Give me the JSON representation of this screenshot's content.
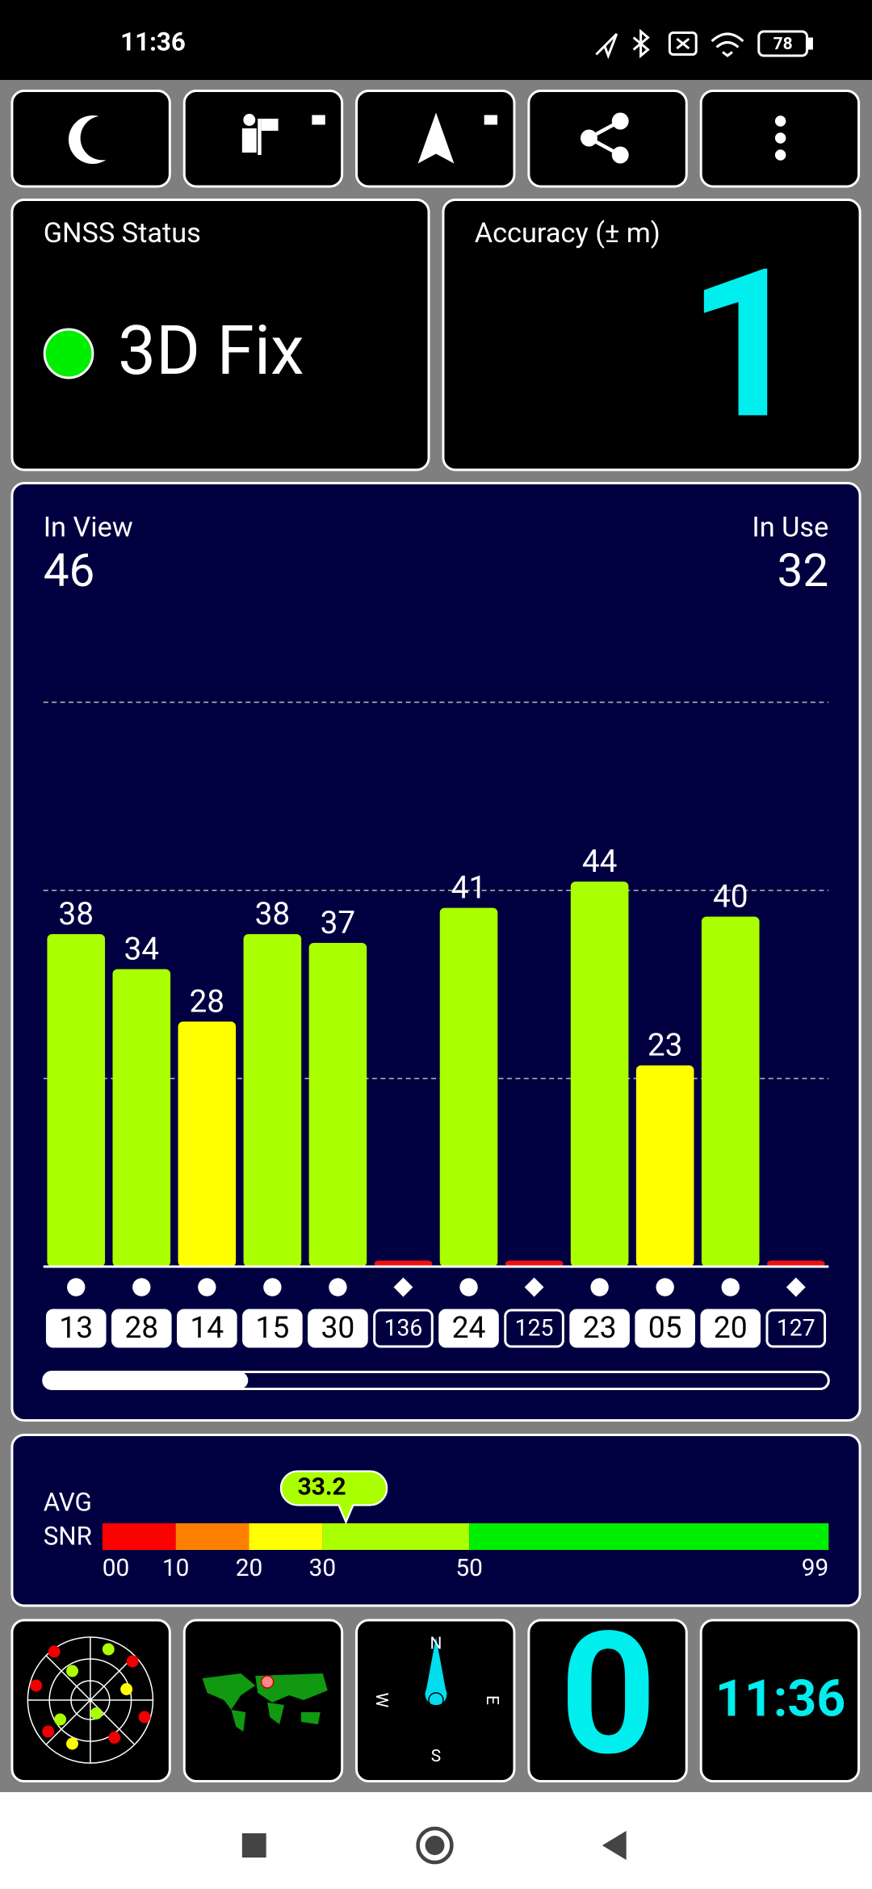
{
  "status_bar": {
    "time": "11:36",
    "battery": "78"
  },
  "gnss": {
    "title": "GNSS Status",
    "fix": "3D Fix"
  },
  "accuracy": {
    "title": "Accuracy (± m)",
    "value": "1"
  },
  "counts": {
    "in_view_label": "In View",
    "in_view": "46",
    "in_use_label": "In Use",
    "in_use": "32"
  },
  "chart_data": {
    "type": "bar",
    "categories": [
      "13",
      "28",
      "14",
      "15",
      "30",
      "136",
      "24",
      "125",
      "23",
      "05",
      "20",
      "127"
    ],
    "values": [
      38,
      34,
      28,
      38,
      37,
      0,
      41,
      0,
      44,
      23,
      40,
      0
    ],
    "colors": [
      "#aaff00",
      "#aaff00",
      "#ffff00",
      "#aaff00",
      "#aaff00",
      "#ee1111",
      "#aaff00",
      "#ee1111",
      "#aaff00",
      "#ffff00",
      "#aaff00",
      "#ee1111"
    ],
    "marker_shapes": [
      "circle",
      "circle",
      "circle",
      "circle",
      "circle",
      "diamond",
      "circle",
      "diamond",
      "circle",
      "circle",
      "circle",
      "diamond"
    ],
    "ylim": [
      0,
      64.5
    ],
    "yticks": [
      21.5,
      43,
      64.5
    ],
    "grid": true
  },
  "snr": {
    "label_1": "AVG",
    "label_2": "SNR",
    "avg": 33.2,
    "avg_label": "33.2",
    "xlim": [
      0,
      99
    ],
    "xticks": [
      {
        "value": 0,
        "label": "00"
      },
      10,
      20,
      30,
      50,
      99
    ],
    "segment_colors": [
      "#ff0000",
      "#ff8000",
      "#ffff00",
      "#aaff00",
      "#00ee00"
    ]
  },
  "tiles": {
    "compass": {
      "n": "N",
      "e": "E",
      "s": "S",
      "w": "W"
    },
    "speed": "0",
    "clock": "11:36"
  }
}
